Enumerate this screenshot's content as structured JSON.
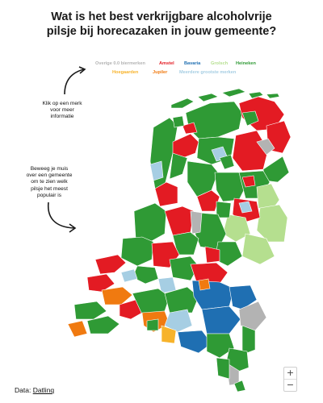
{
  "title": {
    "line1": "Wat is het best verkrijgbare alcoholvrije",
    "line2": "pilsje bij horecazaken in jouw gemeente?"
  },
  "legend": [
    {
      "label": "Overige 0.0 biermerken",
      "color": "#b3b3b3"
    },
    {
      "label": "Amstel",
      "color": "#e31b23"
    },
    {
      "label": "Bavaria",
      "color": "#1f6fb2"
    },
    {
      "label": "Grolsch",
      "color": "#b5df8f"
    },
    {
      "label": "Heineken",
      "color": "#2f9a35"
    },
    {
      "label": "Hoegaarden",
      "color": "#f7b32b"
    },
    {
      "label": "Jupiler",
      "color": "#f07a10"
    },
    {
      "label": "Meerdere grootste merken",
      "color": "#a6cee3"
    }
  ],
  "annotations": {
    "click": [
      "Klik op een merk",
      "voor meer",
      "informatie"
    ],
    "hover": [
      "Beweeg je muis",
      "over een gemeente",
      "om te zien welk",
      "pilsje het meest",
      "populair is"
    ]
  },
  "map_colors": {
    "overige": "#b3b3b3",
    "amstel": "#e31b23",
    "bavaria": "#1f6fb2",
    "grolsch": "#b5df8f",
    "heineken": "#2f9a35",
    "hoegaarden": "#f7b32b",
    "jupiler": "#f07a10",
    "meerdere": "#a6cee3"
  },
  "zoom": {
    "in": "+",
    "out": "−"
  },
  "source": {
    "prefix": "Data: ",
    "link": "Datlinq"
  }
}
